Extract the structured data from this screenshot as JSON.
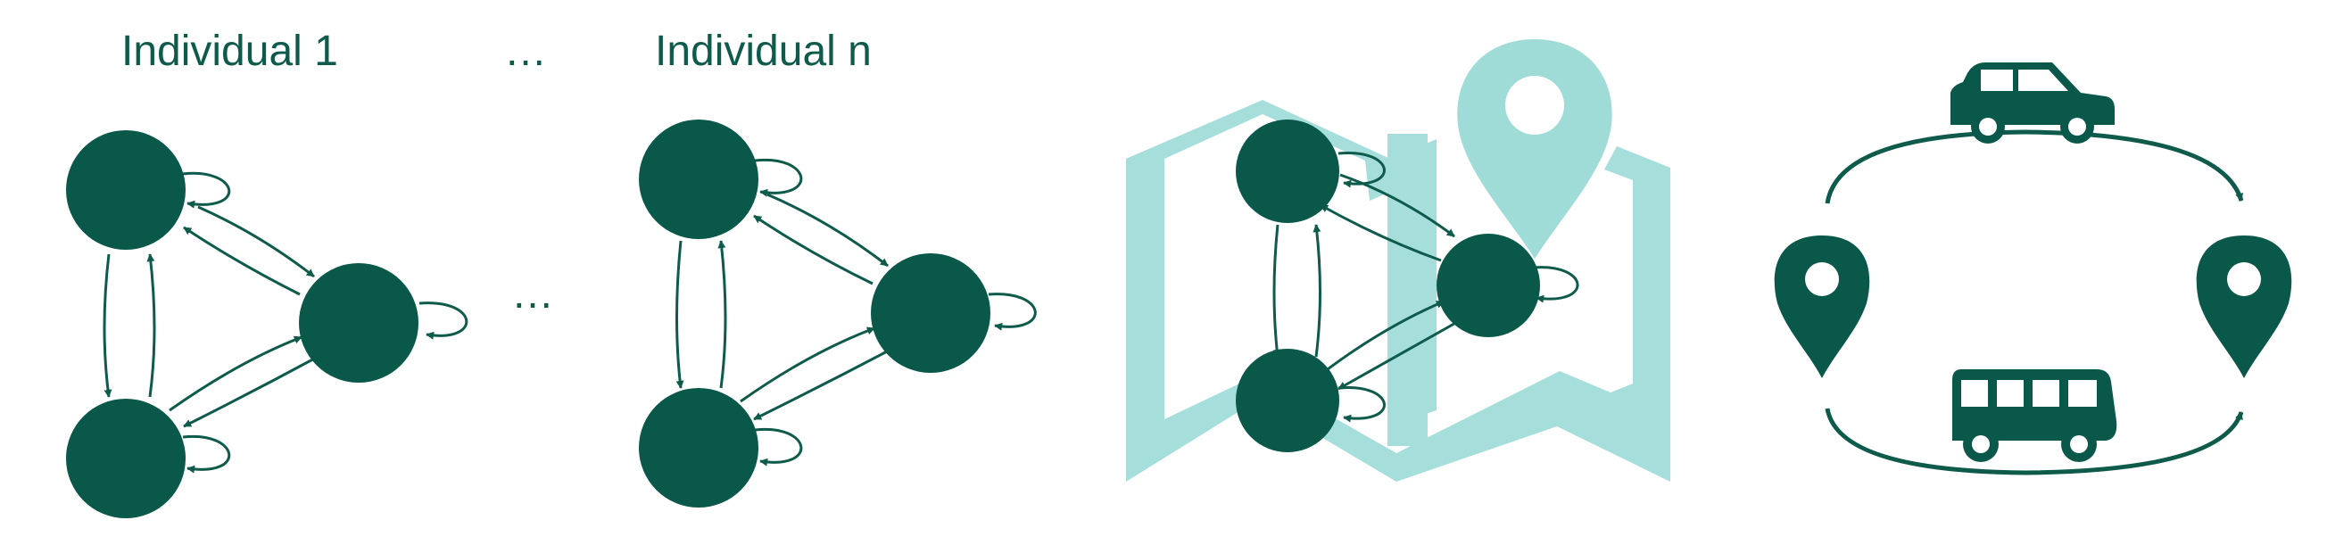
{
  "labels": {
    "individual_first": "Individual 1",
    "individual_last": "Individual n",
    "ellipsis_top": "…",
    "ellipsis_middle": "…"
  },
  "colors": {
    "node": "#0a584a",
    "edge": "#0e5a4b",
    "map": "#a6dedb",
    "pin_light": "#9fdcd8",
    "vehicle": "#0a584a"
  },
  "icons": [
    "map-icon",
    "location-pin-icon",
    "car-icon",
    "bus-icon",
    "destination-pin-icon"
  ]
}
